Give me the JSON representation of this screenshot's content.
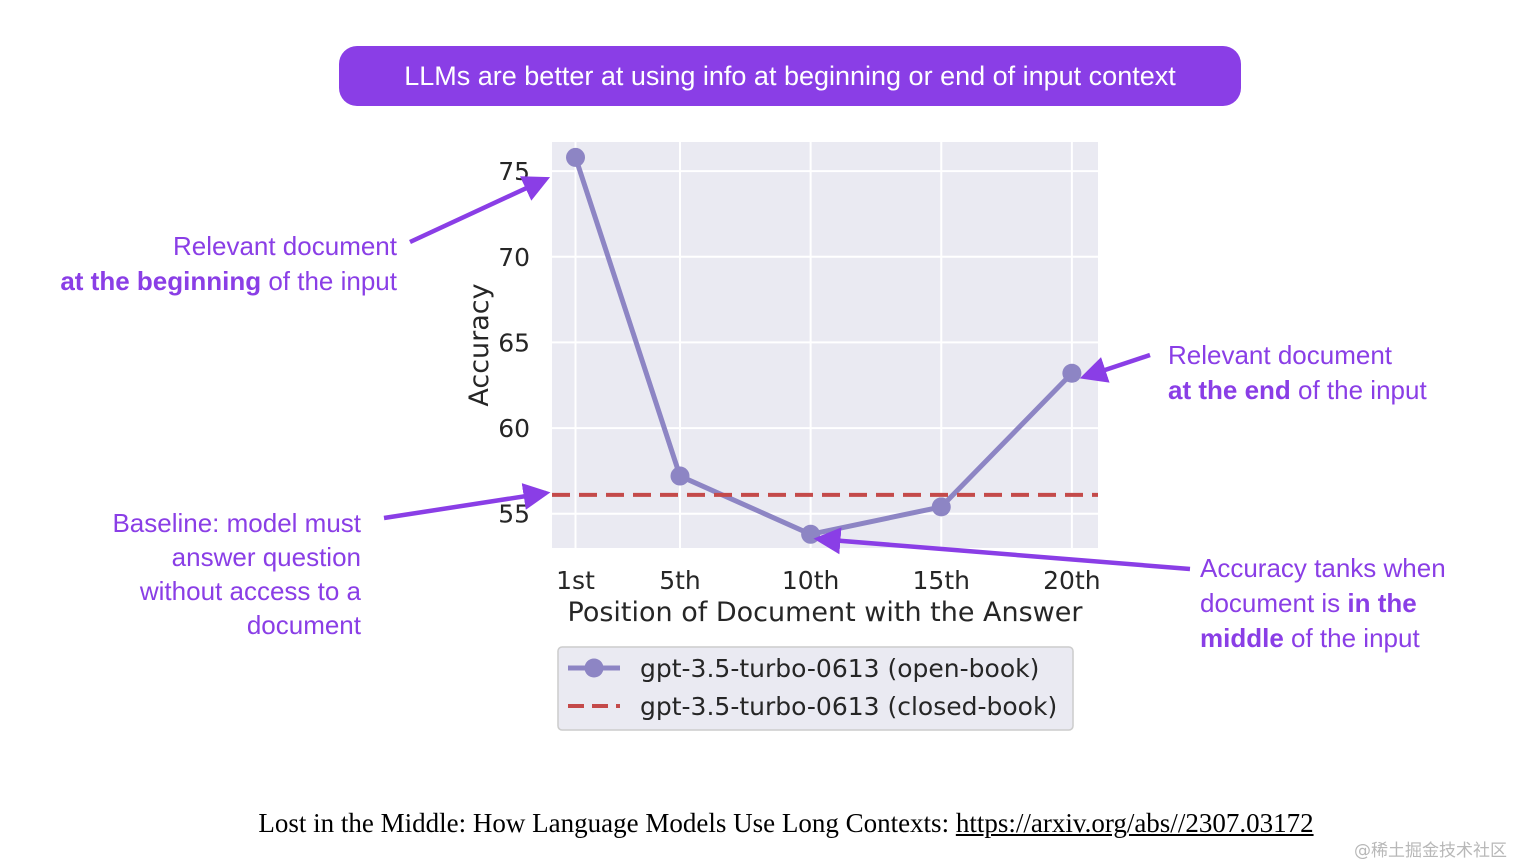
{
  "banner": {
    "text": "LLMs are better at using info at beginning or end of input context"
  },
  "annotations": {
    "beginning": {
      "line1": "Relevant document",
      "line2_bold": "at the beginning",
      "line2_rest": " of the input"
    },
    "end": {
      "line1": "Relevant document",
      "line2_bold": "at the end",
      "line2_rest": " of the input"
    },
    "baseline": {
      "line1": "Baseline: model must",
      "line2": "answer question",
      "line3": "without access to a",
      "line4": "document"
    },
    "middle": {
      "line1": "Accuracy tanks when",
      "line2_pre": "document is ",
      "line2_bold": "in the",
      "line3_bold": "middle",
      "line3_rest": " of the input"
    }
  },
  "chart_data": {
    "type": "line",
    "xlabel": "Position of Document with the Answer",
    "ylabel": "Accuracy",
    "x": [
      1,
      5,
      10,
      15,
      20
    ],
    "categories": [
      "1st",
      "5th",
      "10th",
      "15th",
      "20th"
    ],
    "yticks": [
      55,
      60,
      65,
      70,
      75
    ],
    "ylim": [
      53,
      76.7
    ],
    "xlim": [
      0.1,
      21
    ],
    "grid": true,
    "legend_position": "below",
    "series": [
      {
        "name": "gpt-3.5-turbo-0613 (open-book)",
        "style": "solid-marker",
        "color": "#8d85c4",
        "values": [
          75.8,
          57.2,
          53.8,
          55.4,
          63.2
        ]
      },
      {
        "name": "gpt-3.5-turbo-0613 (closed-book)",
        "style": "dashed",
        "color": "#c44a4a",
        "values": [
          56.1,
          56.1,
          56.1,
          56.1,
          56.1
        ]
      }
    ]
  },
  "arrow_color": "#8a3ee6",
  "citation": {
    "text": "Lost in the Middle: How Language Models Use Long Contexts: ",
    "link": "https://arxiv.org/abs//2307.03172"
  },
  "watermark": "@稀土掘金技术社区"
}
